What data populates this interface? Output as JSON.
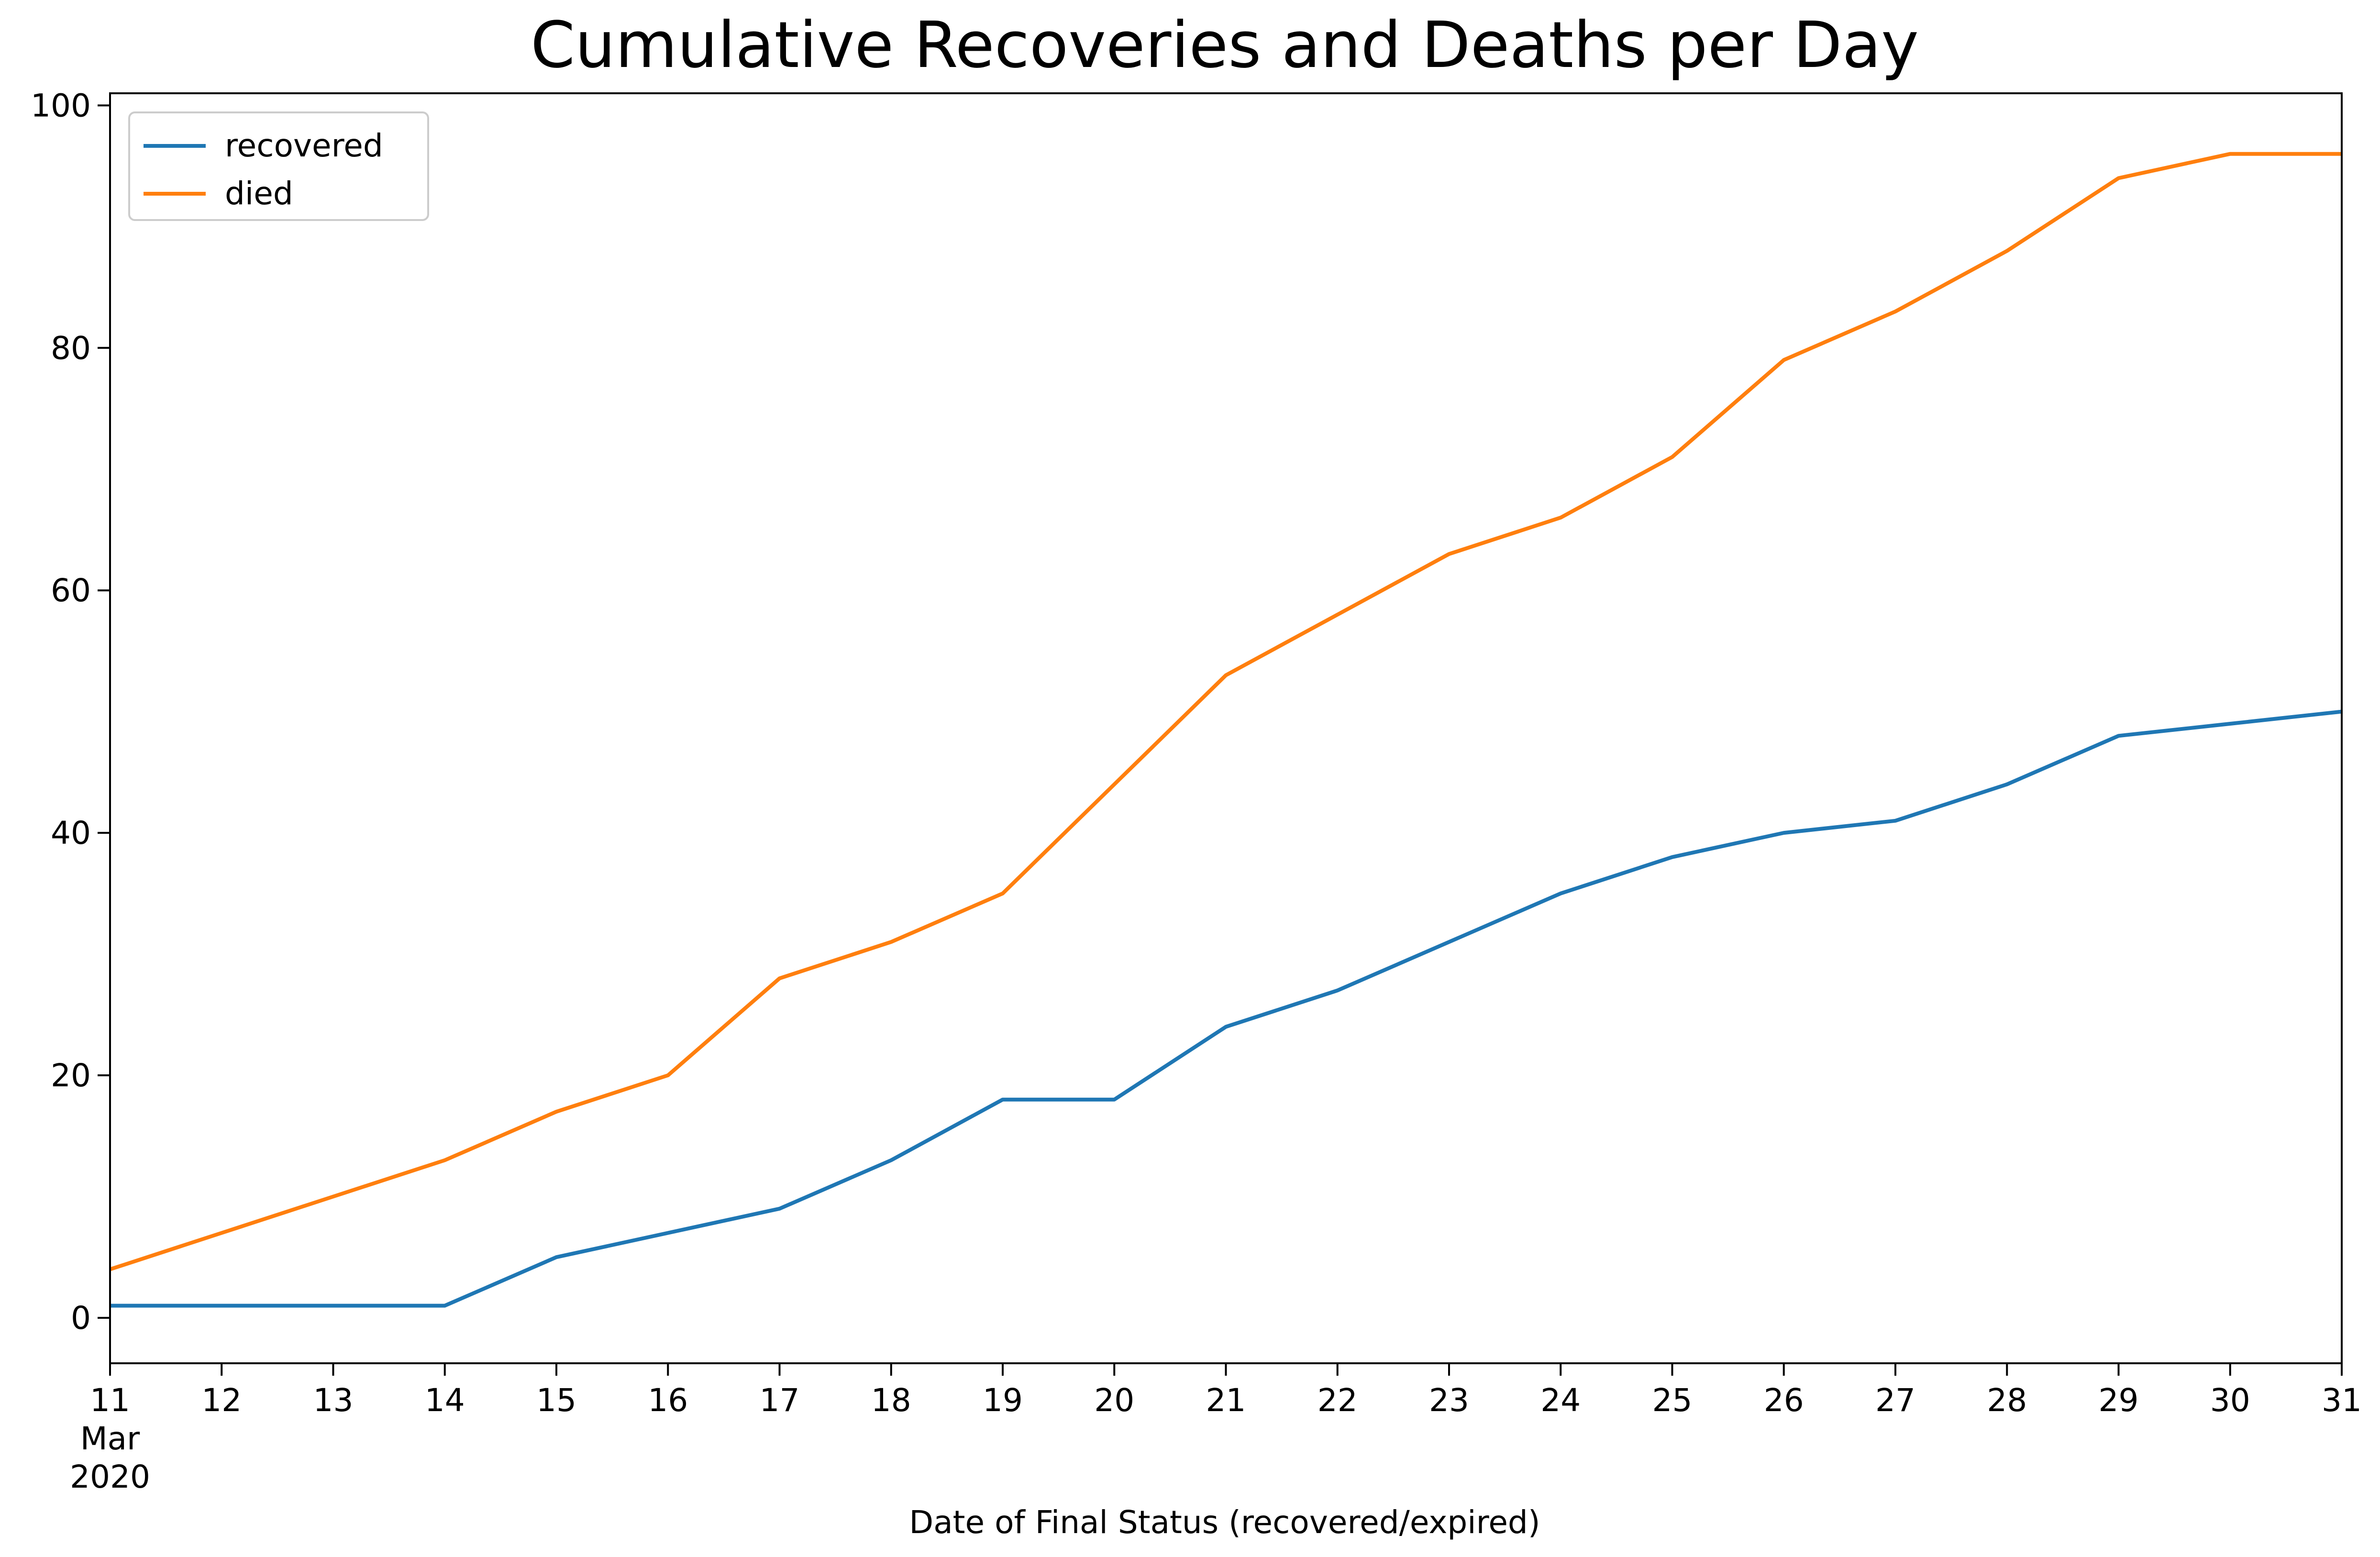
{
  "chart_data": {
    "type": "line",
    "title": "Cumulative Recoveries and Deaths per Day",
    "xlabel": "Date of Final Status (recovered/expired)",
    "ylabel": "",
    "x": [
      "2020-03-11",
      "2020-03-12",
      "2020-03-13",
      "2020-03-14",
      "2020-03-15",
      "2020-03-16",
      "2020-03-17",
      "2020-03-18",
      "2020-03-19",
      "2020-03-20",
      "2020-03-21",
      "2020-03-22",
      "2020-03-23",
      "2020-03-24",
      "2020-03-25",
      "2020-03-26",
      "2020-03-27",
      "2020-03-28",
      "2020-03-29",
      "2020-03-30",
      "2020-03-31"
    ],
    "x_tick_labels": [
      "11",
      "12",
      "13",
      "14",
      "15",
      "16",
      "17",
      "18",
      "19",
      "20",
      "21",
      "22",
      "23",
      "24",
      "25",
      "26",
      "27",
      "28",
      "29",
      "30",
      "31"
    ],
    "x_tick_sublabels": [
      "Mar",
      "2020"
    ],
    "y_ticks": [
      0,
      20,
      40,
      60,
      80,
      100
    ],
    "ylim": [
      -3.75,
      101
    ],
    "grid": false,
    "legend_position": "top-left",
    "series": [
      {
        "name": "recovered",
        "color": "#1f77b4",
        "values": [
          1,
          1,
          1,
          1,
          5,
          7,
          9,
          13,
          18,
          18,
          24,
          27,
          31,
          35,
          38,
          40,
          41,
          44,
          48,
          49,
          50
        ]
      },
      {
        "name": "died",
        "color": "#ff7f0e",
        "values": [
          4,
          7,
          10,
          13,
          17,
          20,
          28,
          31,
          35,
          44,
          53,
          58,
          63,
          66,
          71,
          79,
          83,
          88,
          94,
          96,
          96
        ]
      }
    ]
  }
}
